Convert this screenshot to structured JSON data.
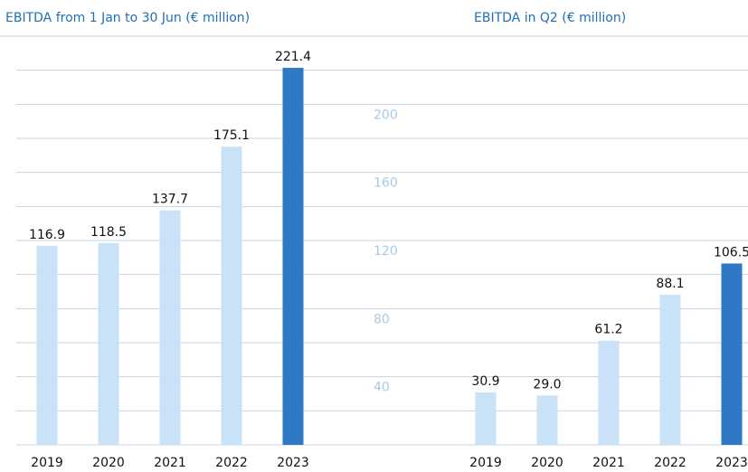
{
  "chart_data": [
    {
      "type": "bar",
      "title": "EBITDA from 1 Jan to 30 Jun (€ million)",
      "categories": [
        "2019",
        "2020",
        "2021",
        "2022",
        "2023"
      ],
      "values": [
        116.9,
        118.5,
        137.7,
        175.1,
        221.4
      ],
      "colors": [
        "#c9e2f7",
        "#c9e2f7",
        "#c9e2f7",
        "#c9e2f7",
        "#2f78c4"
      ],
      "ylim": [
        0,
        240
      ],
      "grid": true
    },
    {
      "type": "bar",
      "title": "EBITDA in Q2 (€ million)",
      "categories": [
        "2019",
        "2020",
        "2021",
        "2022",
        "2023"
      ],
      "values": [
        30.9,
        29.0,
        61.2,
        88.1,
        106.5
      ],
      "value_labels": [
        "30.9",
        "29.0",
        "61.2",
        "88.1",
        "106.5"
      ],
      "colors": [
        "#c9e2f7",
        "#c9e2f7",
        "#c9e2f7",
        "#c9e2f7",
        "#2f78c4"
      ],
      "ylim": [
        0,
        240
      ],
      "yticks": [
        40,
        80,
        120,
        160,
        200
      ],
      "grid": true
    }
  ]
}
